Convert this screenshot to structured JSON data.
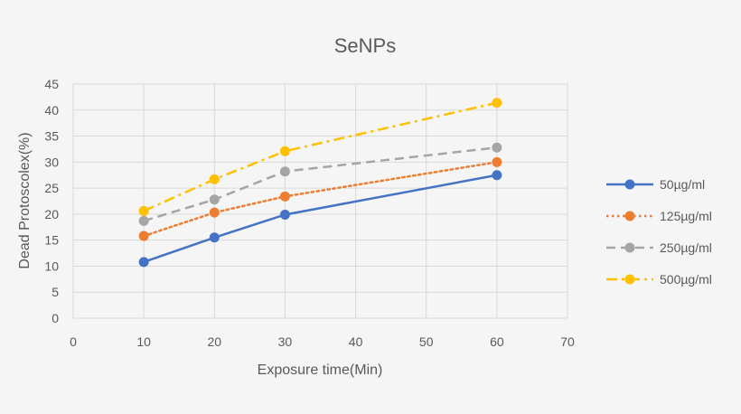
{
  "chart_data": {
    "type": "line",
    "title": "SeNPs",
    "xlabel": "Exposure time(Min)",
    "ylabel": "Dead Protoscolex(%)",
    "xlim": [
      0,
      70
    ],
    "ylim": [
      0,
      45
    ],
    "xticks": [
      "0",
      "10",
      "20",
      "30",
      "40",
      "50",
      "60",
      "70"
    ],
    "yticks": [
      "0",
      "5",
      "10",
      "15",
      "20",
      "25",
      "30",
      "35",
      "40",
      "45"
    ],
    "grid": true,
    "legend_position": "right",
    "x": [
      10,
      20,
      30,
      60
    ],
    "series": [
      {
        "name": "50µg/ml",
        "values": [
          10.8,
          15.5,
          19.9,
          27.5
        ],
        "color": "#4472c4",
        "style": "solid"
      },
      {
        "name": "125µg/ml",
        "values": [
          15.8,
          20.3,
          23.4,
          30.0
        ],
        "color": "#ed7d31",
        "style": "dotted"
      },
      {
        "name": "250µg/ml",
        "values": [
          18.7,
          22.8,
          28.2,
          32.8
        ],
        "color": "#a5a5a5",
        "style": "dashed"
      },
      {
        "name": "500µg/ml",
        "values": [
          20.6,
          26.7,
          32.1,
          41.4
        ],
        "color": "#ffc000",
        "style": "dashdot"
      }
    ]
  }
}
